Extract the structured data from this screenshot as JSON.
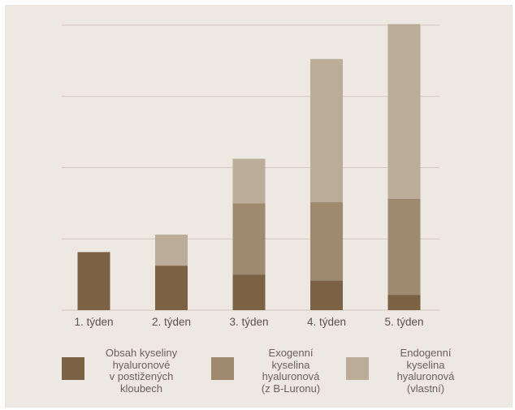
{
  "chart_data": {
    "type": "bar",
    "stacked": true,
    "categories": [
      "1. týden",
      "2. týden",
      "3. týden",
      "4. týden",
      "5. týden"
    ],
    "ylim": [
      0,
      8
    ],
    "grid": true,
    "legend_position": "bottom",
    "series": [
      {
        "name": "Obsah kyseliny hyaluronové v postižených kloubech",
        "color": "#7b6244",
        "values": [
          1.63,
          1.25,
          1.0,
          0.83,
          0.43
        ]
      },
      {
        "name": "Exogenní kyselina hyaluronová (z B-Luronu)",
        "color": "#9d8a6f",
        "values": [
          0,
          0,
          2.0,
          2.2,
          2.7
        ]
      },
      {
        "name": "Endogenní kyselina hyaluronová (vlastní)",
        "color": "#bcad9a",
        "values": [
          0,
          0.87,
          1.25,
          4.02,
          4.9
        ]
      }
    ]
  },
  "legend": [
    {
      "label": "Obsah kyseliny\nhyaluronové\nv postižených\nkloubech",
      "color": "#7b6244"
    },
    {
      "label": "Exogenní\nkyselina\nhyaluronová\n(z B-Luronu)",
      "color": "#9d8a6f"
    },
    {
      "label": "Endogenní\nkyselina\nhyaluronová\n(vlastní)",
      "color": "#bcad9a"
    }
  ]
}
